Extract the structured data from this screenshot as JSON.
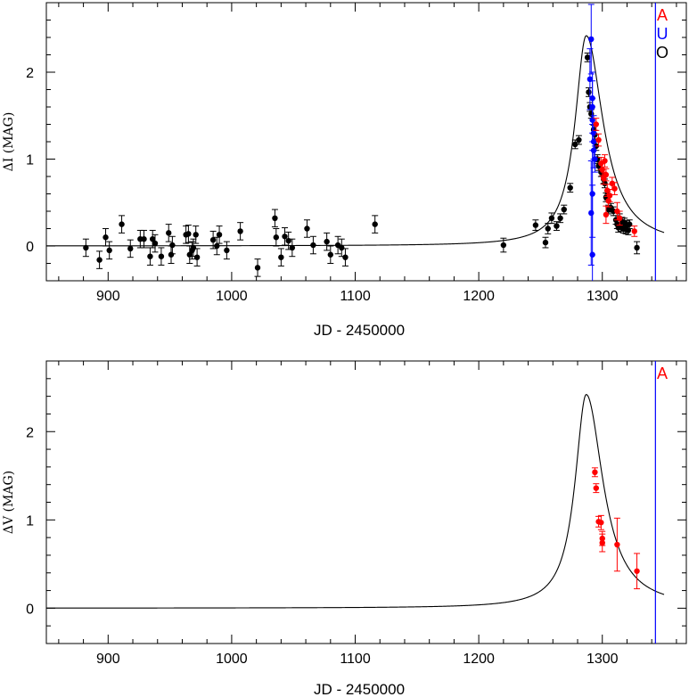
{
  "chart_data": [
    {
      "type": "scatter",
      "panel": "top",
      "xlabel": "JD - 2450000",
      "ylabel": "ΔI (MAG)",
      "xlim": [
        850,
        1368
      ],
      "ylim": [
        -0.4,
        2.8
      ],
      "xticks": [
        900,
        1000,
        1100,
        1200,
        1300
      ],
      "yticks": [
        0,
        1,
        2
      ],
      "legend": [
        {
          "label": "A",
          "color": "#ff0000"
        },
        {
          "label": "U",
          "color": "#0000ff"
        },
        {
          "label": "O",
          "color": "#000000"
        }
      ],
      "vlines": [
        1343
      ],
      "model": {
        "peak_x": 1287,
        "peak_y": 2.42,
        "base_y": 0.0,
        "rise_width": 11,
        "fall_width": 16.5
      },
      "series": [
        {
          "name": "O",
          "color": "#000000",
          "points": [
            [
              882,
              -0.02,
              0.1
            ],
            [
              893,
              -0.16,
              0.1
            ],
            [
              898,
              0.1,
              0.1
            ],
            [
              901,
              -0.05,
              0.1
            ],
            [
              911,
              0.25,
              0.1
            ],
            [
              918,
              -0.03,
              0.1
            ],
            [
              926,
              0.08,
              0.1
            ],
            [
              929,
              0.08,
              0.1
            ],
            [
              934,
              -0.12,
              0.1
            ],
            [
              936,
              0.08,
              0.1
            ],
            [
              938,
              0.03,
              0.1
            ],
            [
              943,
              -0.12,
              0.1
            ],
            [
              949,
              0.15,
              0.1
            ],
            [
              951,
              -0.1,
              0.1
            ],
            [
              952,
              0.01,
              0.1
            ],
            [
              963,
              0.13,
              0.1
            ],
            [
              965,
              0.14,
              0.1
            ],
            [
              966,
              -0.1,
              0.1
            ],
            [
              968,
              -0.05,
              0.1
            ],
            [
              969,
              -0.02,
              0.1
            ],
            [
              971,
              0.13,
              0.1
            ],
            [
              972,
              -0.13,
              0.1
            ],
            [
              985,
              0.07,
              0.1
            ],
            [
              988,
              0.0,
              0.1
            ],
            [
              990,
              0.13,
              0.1
            ],
            [
              996,
              -0.05,
              0.1
            ],
            [
              1007,
              0.17,
              0.1
            ],
            [
              1021,
              -0.25,
              0.1
            ],
            [
              1035,
              0.32,
              0.1
            ],
            [
              1036,
              0.1,
              0.1
            ],
            [
              1040,
              -0.13,
              0.1
            ],
            [
              1043,
              0.11,
              0.1
            ],
            [
              1046,
              0.06,
              0.1
            ],
            [
              1049,
              -0.02,
              0.1
            ],
            [
              1061,
              0.2,
              0.1
            ],
            [
              1066,
              0.01,
              0.1
            ],
            [
              1077,
              0.05,
              0.1
            ],
            [
              1080,
              -0.1,
              0.1
            ],
            [
              1086,
              0.01,
              0.1
            ],
            [
              1089,
              -0.02,
              0.1
            ],
            [
              1092,
              -0.13,
              0.1
            ],
            [
              1116,
              0.25,
              0.1
            ],
            [
              1220,
              0.01,
              0.08
            ],
            [
              1246,
              0.24,
              0.06
            ],
            [
              1254,
              0.04,
              0.06
            ],
            [
              1256,
              0.2,
              0.06
            ],
            [
              1259,
              0.32,
              0.06
            ],
            [
              1263,
              0.23,
              0.05
            ],
            [
              1266,
              0.32,
              0.05
            ],
            [
              1269,
              0.42,
              0.05
            ],
            [
              1274,
              0.67,
              0.05
            ],
            [
              1278,
              1.17,
              0.05
            ],
            [
              1281,
              1.22,
              0.05
            ],
            [
              1288,
              2.17,
              0.05
            ],
            [
              1289,
              1.77,
              0.05
            ],
            [
              1290,
              1.6,
              0.05
            ],
            [
              1291,
              1.52,
              0.05
            ],
            [
              1293,
              1.34,
              0.05
            ],
            [
              1294,
              1.28,
              0.05
            ],
            [
              1295,
              1.15,
              0.05
            ],
            [
              1296,
              1.0,
              0.05
            ],
            [
              1297,
              0.92,
              0.05
            ],
            [
              1299,
              0.85,
              0.05
            ],
            [
              1301,
              0.77,
              0.05
            ],
            [
              1302,
              0.72,
              0.05
            ],
            [
              1303,
              0.56,
              0.05
            ],
            [
              1304,
              0.58,
              0.05
            ],
            [
              1305,
              0.42,
              0.05
            ],
            [
              1307,
              0.44,
              0.05
            ],
            [
              1309,
              0.4,
              0.05
            ],
            [
              1311,
              0.3,
              0.05
            ],
            [
              1312,
              0.25,
              0.05
            ],
            [
              1313,
              0.21,
              0.05
            ],
            [
              1314,
              0.32,
              0.05
            ],
            [
              1315,
              0.22,
              0.05
            ],
            [
              1316,
              0.28,
              0.05
            ],
            [
              1317,
              0.2,
              0.05
            ],
            [
              1318,
              0.27,
              0.05
            ],
            [
              1319,
              0.19,
              0.05
            ],
            [
              1320,
              0.24,
              0.05
            ],
            [
              1321,
              0.18,
              0.05
            ],
            [
              1322,
              0.25,
              0.05
            ],
            [
              1328,
              -0.02,
              0.07
            ]
          ]
        },
        {
          "name": "U",
          "color": "#0000ff",
          "points": [
            [
              1290,
              1.92,
              0.35
            ],
            [
              1291,
              2.38,
              0.4
            ],
            [
              1292,
              1.6,
              0.3
            ],
            [
              1292,
              1.45,
              0.25
            ],
            [
              1293,
              1.3,
              0.2
            ],
            [
              1293,
              1.1,
              0.2
            ],
            [
              1294,
              1.0,
              0.15
            ],
            [
              1292,
              0.6,
              0.5
            ],
            [
              1291,
              0.38,
              0.6
            ],
            [
              1292,
              -0.1,
              0.8
            ],
            [
              1292,
              1.7,
              0.3
            ],
            [
              1293,
              1.2,
              0.2
            ]
          ]
        },
        {
          "name": "A",
          "color": "#ff0000",
          "points": [
            [
              1295,
              1.4,
              0.07
            ],
            [
              1297,
              1.22,
              0.07
            ],
            [
              1299,
              0.95,
              0.07
            ],
            [
              1300,
              0.88,
              0.07
            ],
            [
              1301,
              0.78,
              0.07
            ],
            [
              1302,
              0.98,
              0.07
            ],
            [
              1303,
              0.82,
              0.07
            ],
            [
              1304,
              0.64,
              0.07
            ],
            [
              1305,
              0.52,
              0.07
            ],
            [
              1303,
              0.36,
              0.1
            ],
            [
              1306,
              0.58,
              0.07
            ],
            [
              1308,
              0.72,
              0.07
            ],
            [
              1310,
              0.66,
              0.07
            ],
            [
              1312,
              0.4,
              0.1
            ],
            [
              1314,
              0.32,
              0.08
            ],
            [
              1326,
              0.17,
              0.06
            ]
          ]
        }
      ]
    },
    {
      "type": "scatter",
      "panel": "bottom",
      "xlabel": "JD - 2450000",
      "ylabel": "ΔV (MAG)",
      "xlim": [
        850,
        1368
      ],
      "ylim": [
        -0.4,
        2.8
      ],
      "xticks": [
        900,
        1000,
        1100,
        1200,
        1300
      ],
      "yticks": [
        0,
        1,
        2
      ],
      "legend": [
        {
          "label": "A",
          "color": "#ff0000"
        }
      ],
      "vlines": [
        1343
      ],
      "model": {
        "peak_x": 1287,
        "peak_y": 2.42,
        "base_y": 0.0,
        "rise_width": 11,
        "fall_width": 16.5
      },
      "series": [
        {
          "name": "A",
          "color": "#ff0000",
          "points": [
            [
              1294,
              1.54,
              0.05
            ],
            [
              1295,
              1.36,
              0.05
            ],
            [
              1297,
              0.98,
              0.06
            ],
            [
              1299,
              0.97,
              0.08
            ],
            [
              1300,
              0.79,
              0.08
            ],
            [
              1300,
              0.74,
              0.1
            ],
            [
              1312,
              0.72,
              0.3
            ],
            [
              1328,
              0.42,
              0.2
            ]
          ]
        }
      ]
    }
  ]
}
